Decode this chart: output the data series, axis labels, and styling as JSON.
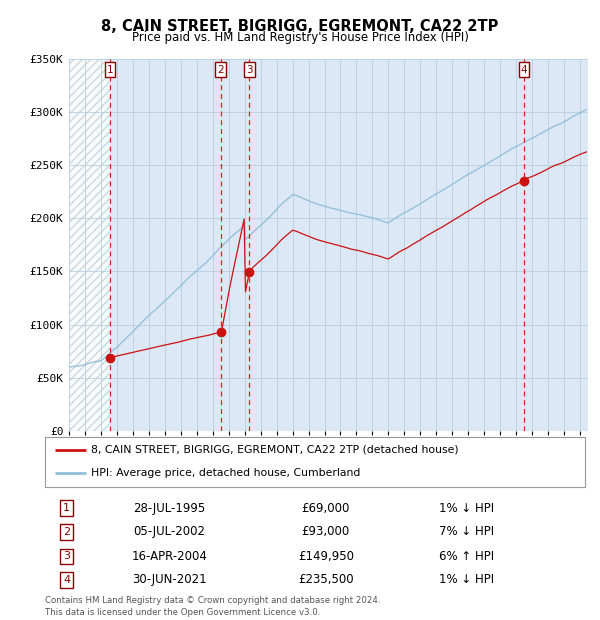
{
  "title": "8, CAIN STREET, BIGRIGG, EGREMONT, CA22 2TP",
  "subtitle": "Price paid vs. HM Land Registry's House Price Index (HPI)",
  "title_fontsize": 10.5,
  "subtitle_fontsize": 8.5,
  "background_color": "#ffffff",
  "plot_bg_color": "#dce8f5",
  "grid_color": "#b8cfe0",
  "sale_color": "#cc1111",
  "hpi_color": "#90bdd9",
  "vline_color": "#dd2222",
  "marker_color": "#cc1111",
  "legend_sale_label": "8, CAIN STREET, BIGRIGG, EGREMONT, CA22 2TP (detached house)",
  "legend_hpi_label": "HPI: Average price, detached house, Cumberland",
  "transactions": [
    {
      "num": 1,
      "date": "28-JUL-1995",
      "year": 1995.57,
      "price": 69000,
      "hpi_rel": "1% ↓ HPI"
    },
    {
      "num": 2,
      "date": "05-JUL-2002",
      "year": 2002.51,
      "price": 93000,
      "hpi_rel": "7% ↓ HPI"
    },
    {
      "num": 3,
      "date": "16-APR-2004",
      "year": 2004.29,
      "price": 149950,
      "hpi_rel": "6% ↑ HPI"
    },
    {
      "num": 4,
      "date": "30-JUN-2021",
      "year": 2021.49,
      "price": 235500,
      "hpi_rel": "1% ↓ HPI"
    }
  ],
  "ylim": [
    0,
    350000
  ],
  "yticks": [
    0,
    50000,
    100000,
    150000,
    200000,
    250000,
    300000,
    350000
  ],
  "ytick_labels": [
    "£0",
    "£50K",
    "£100K",
    "£150K",
    "£200K",
    "£250K",
    "£300K",
    "£350K"
  ],
  "xlim_start": 1993.0,
  "xlim_end": 2025.5,
  "footer": "Contains HM Land Registry data © Crown copyright and database right 2024.\nThis data is licensed under the Open Government Licence v3.0."
}
